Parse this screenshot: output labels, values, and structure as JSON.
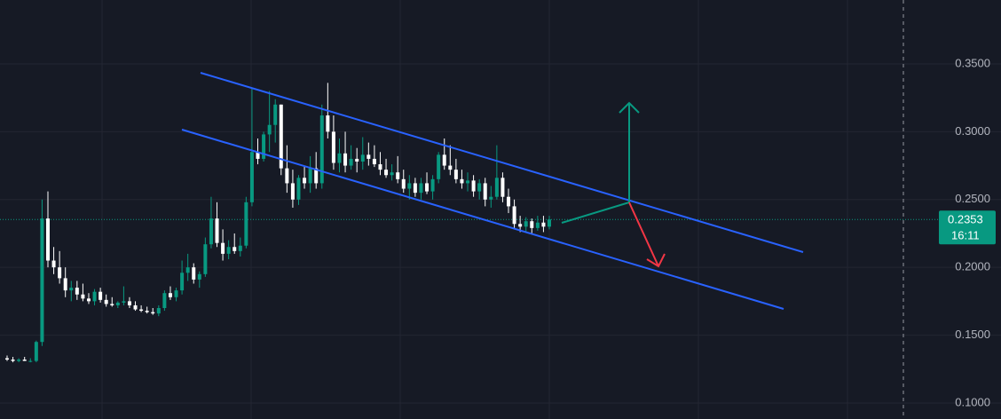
{
  "chart_data": {
    "type": "candlestick",
    "ylim": [
      0.0882,
      0.3971
    ],
    "yticks": [
      {
        "value": 0.1,
        "label": "0.1000"
      },
      {
        "value": 0.15,
        "label": "0.1500"
      },
      {
        "value": 0.2,
        "label": "0.2000"
      },
      {
        "value": 0.25,
        "label": "0.2500"
      },
      {
        "value": 0.3,
        "label": "0.3000"
      },
      {
        "value": 0.35,
        "label": "0.3500"
      }
    ],
    "up_color": "#089981",
    "down_color": "#ffffff",
    "grid": true,
    "last_price": 0.2353,
    "countdown": "16:11",
    "open": [
      0.133,
      0.132,
      0.131,
      0.132,
      0.131,
      0.131,
      0.145,
      0.236,
      0.205,
      0.2,
      0.192,
      0.183,
      0.185,
      0.18,
      0.177,
      0.175,
      0.182,
      0.176,
      0.173,
      0.172,
      0.174,
      0.175,
      0.172,
      0.169,
      0.168,
      0.167,
      0.166,
      0.17,
      0.181,
      0.178,
      0.183,
      0.196,
      0.2,
      0.191,
      0.195,
      0.217,
      0.236,
      0.218,
      0.21,
      0.215,
      0.212,
      0.216,
      0.248,
      0.285,
      0.28,
      0.298,
      0.305,
      0.32,
      0.273,
      0.262,
      0.25,
      0.266,
      0.262,
      0.273,
      0.262,
      0.312,
      0.3,
      0.277,
      0.284,
      0.275,
      0.28,
      0.278,
      0.283,
      0.28,
      0.276,
      0.272,
      0.268,
      0.27,
      0.265,
      0.258,
      0.262,
      0.255,
      0.262,
      0.256,
      0.265,
      0.283,
      0.275,
      0.272,
      0.265,
      0.262,
      0.264,
      0.256,
      0.262,
      0.25,
      0.252,
      0.266,
      0.252,
      0.245,
      0.232,
      0.23,
      0.234,
      0.229,
      0.233,
      0.23
    ],
    "high": [
      0.135,
      0.134,
      0.133,
      0.134,
      0.133,
      0.146,
      0.25,
      0.256,
      0.215,
      0.212,
      0.2,
      0.19,
      0.19,
      0.188,
      0.181,
      0.184,
      0.185,
      0.18,
      0.178,
      0.175,
      0.186,
      0.178,
      0.175,
      0.172,
      0.171,
      0.17,
      0.172,
      0.183,
      0.186,
      0.185,
      0.205,
      0.21,
      0.203,
      0.197,
      0.222,
      0.252,
      0.248,
      0.228,
      0.22,
      0.225,
      0.222,
      0.252,
      0.332,
      0.295,
      0.3,
      0.33,
      0.324,
      0.32,
      0.29,
      0.272,
      0.268,
      0.275,
      0.282,
      0.285,
      0.32,
      0.336,
      0.312,
      0.295,
      0.3,
      0.29,
      0.288,
      0.296,
      0.292,
      0.29,
      0.285,
      0.28,
      0.276,
      0.282,
      0.272,
      0.268,
      0.266,
      0.266,
      0.27,
      0.268,
      0.285,
      0.295,
      0.29,
      0.28,
      0.272,
      0.27,
      0.268,
      0.265,
      0.266,
      0.26,
      0.29,
      0.27,
      0.258,
      0.25,
      0.238,
      0.237,
      0.236,
      0.238,
      0.238,
      0.238
    ],
    "low": [
      0.131,
      0.13,
      0.13,
      0.131,
      0.13,
      0.13,
      0.142,
      0.2,
      0.195,
      0.188,
      0.178,
      0.175,
      0.176,
      0.175,
      0.173,
      0.172,
      0.174,
      0.171,
      0.171,
      0.17,
      0.172,
      0.17,
      0.168,
      0.167,
      0.166,
      0.165,
      0.164,
      0.168,
      0.176,
      0.175,
      0.18,
      0.19,
      0.188,
      0.185,
      0.193,
      0.214,
      0.215,
      0.205,
      0.206,
      0.21,
      0.208,
      0.214,
      0.245,
      0.276,
      0.278,
      0.285,
      0.292,
      0.268,
      0.255,
      0.244,
      0.246,
      0.258,
      0.255,
      0.258,
      0.258,
      0.295,
      0.272,
      0.27,
      0.27,
      0.272,
      0.27,
      0.272,
      0.275,
      0.274,
      0.268,
      0.266,
      0.264,
      0.262,
      0.255,
      0.25,
      0.252,
      0.25,
      0.254,
      0.25,
      0.262,
      0.272,
      0.268,
      0.262,
      0.258,
      0.256,
      0.252,
      0.25,
      0.245,
      0.244,
      0.25,
      0.248,
      0.24,
      0.228,
      0.226,
      0.226,
      0.225,
      0.227,
      0.226,
      0.228
    ],
    "close": [
      0.132,
      0.131,
      0.132,
      0.131,
      0.131,
      0.145,
      0.236,
      0.205,
      0.2,
      0.192,
      0.183,
      0.185,
      0.18,
      0.177,
      0.175,
      0.182,
      0.176,
      0.173,
      0.172,
      0.174,
      0.175,
      0.172,
      0.169,
      0.168,
      0.167,
      0.166,
      0.17,
      0.181,
      0.178,
      0.183,
      0.196,
      0.2,
      0.191,
      0.195,
      0.217,
      0.236,
      0.218,
      0.21,
      0.215,
      0.212,
      0.216,
      0.248,
      0.285,
      0.28,
      0.298,
      0.305,
      0.32,
      0.273,
      0.262,
      0.25,
      0.266,
      0.262,
      0.273,
      0.262,
      0.312,
      0.3,
      0.277,
      0.284,
      0.275,
      0.28,
      0.278,
      0.283,
      0.28,
      0.276,
      0.272,
      0.268,
      0.27,
      0.265,
      0.258,
      0.262,
      0.255,
      0.262,
      0.256,
      0.265,
      0.283,
      0.275,
      0.272,
      0.265,
      0.262,
      0.264,
      0.256,
      0.262,
      0.25,
      0.252,
      0.266,
      0.252,
      0.245,
      0.232,
      0.23,
      0.234,
      0.229,
      0.233,
      0.23,
      0.2353
    ]
  }
}
